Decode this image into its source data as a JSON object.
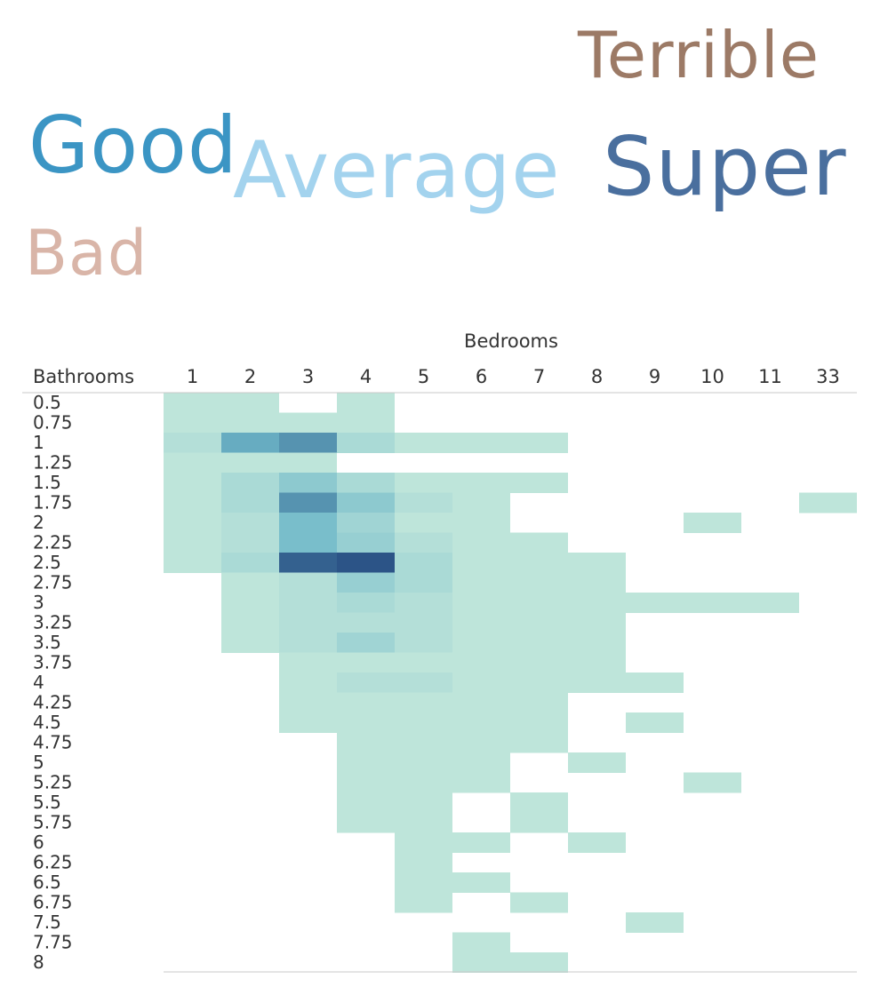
{
  "word_cloud": [
    {
      "text": "Terrible",
      "color": "#9c7a66"
    },
    {
      "text": "Good",
      "color": "#3b95c4"
    },
    {
      "text": "Average",
      "color": "#a3d3ee"
    },
    {
      "text": "Super",
      "color": "#4a6f9e"
    },
    {
      "text": "Bad",
      "color": "#d9b5a8"
    }
  ],
  "chart_data": {
    "type": "heatmap",
    "xlabel": "Bedrooms",
    "ylabel": "Bathrooms",
    "x": [
      "1",
      "2",
      "3",
      "4",
      "5",
      "6",
      "7",
      "8",
      "9",
      "10",
      "11",
      "33"
    ],
    "y": [
      "0.5",
      "0.75",
      "1",
      "1.25",
      "1.5",
      "1.75",
      "2",
      "2.25",
      "2.5",
      "2.75",
      "3",
      "3.25",
      "3.5",
      "3.75",
      "4",
      "4.25",
      "4.5",
      "4.75",
      "5",
      "5.25",
      "5.5",
      "5.75",
      "6",
      "6.25",
      "6.5",
      "6.75",
      "7.5",
      "7.75",
      "8"
    ],
    "grid": false,
    "color_scale": [
      "#bee5da",
      "#6fb8c9",
      "#2c5487"
    ],
    "cells": [
      [
        "0.5",
        "1",
        1
      ],
      [
        "0.5",
        "2",
        1
      ],
      [
        "0.5",
        "4",
        1
      ],
      [
        "0.75",
        "1",
        1
      ],
      [
        "0.75",
        "2",
        1
      ],
      [
        "0.75",
        "3",
        1
      ],
      [
        "0.75",
        "4",
        1
      ],
      [
        "1",
        "1",
        2
      ],
      [
        "1",
        "2",
        10
      ],
      [
        "1",
        "3",
        12
      ],
      [
        "1",
        "4",
        3
      ],
      [
        "1",
        "5",
        1
      ],
      [
        "1",
        "6",
        1
      ],
      [
        "1",
        "7",
        1
      ],
      [
        "1.25",
        "1",
        1
      ],
      [
        "1.25",
        "2",
        1
      ],
      [
        "1.25",
        "3",
        1
      ],
      [
        "1.5",
        "1",
        1
      ],
      [
        "1.5",
        "2",
        3
      ],
      [
        "1.5",
        "3",
        6
      ],
      [
        "1.5",
        "4",
        3
      ],
      [
        "1.5",
        "5",
        1
      ],
      [
        "1.5",
        "6",
        1
      ],
      [
        "1.5",
        "7",
        1
      ],
      [
        "1.75",
        "1",
        1
      ],
      [
        "1.75",
        "2",
        3
      ],
      [
        "1.75",
        "3",
        12
      ],
      [
        "1.75",
        "4",
        6
      ],
      [
        "1.75",
        "5",
        2
      ],
      [
        "1.75",
        "6",
        1
      ],
      [
        "1.75",
        "33",
        1
      ],
      [
        "2",
        "1",
        1
      ],
      [
        "2",
        "2",
        2
      ],
      [
        "2",
        "3",
        8
      ],
      [
        "2",
        "4",
        4
      ],
      [
        "2",
        "5",
        1
      ],
      [
        "2",
        "6",
        1
      ],
      [
        "2",
        "10",
        1
      ],
      [
        "2.25",
        "1",
        1
      ],
      [
        "2.25",
        "2",
        2
      ],
      [
        "2.25",
        "3",
        8
      ],
      [
        "2.25",
        "4",
        5
      ],
      [
        "2.25",
        "5",
        2
      ],
      [
        "2.25",
        "6",
        1
      ],
      [
        "2.25",
        "7",
        1
      ],
      [
        "2.5",
        "1",
        1
      ],
      [
        "2.5",
        "2",
        3
      ],
      [
        "2.5",
        "3",
        16
      ],
      [
        "2.5",
        "4",
        17
      ],
      [
        "2.5",
        "5",
        3
      ],
      [
        "2.5",
        "6",
        1
      ],
      [
        "2.5",
        "7",
        1
      ],
      [
        "2.5",
        "8",
        1
      ],
      [
        "2.75",
        "2",
        1
      ],
      [
        "2.75",
        "3",
        2
      ],
      [
        "2.75",
        "4",
        5
      ],
      [
        "2.75",
        "5",
        3
      ],
      [
        "2.75",
        "6",
        1
      ],
      [
        "2.75",
        "7",
        1
      ],
      [
        "2.75",
        "8",
        1
      ],
      [
        "3",
        "2",
        1
      ],
      [
        "3",
        "3",
        2
      ],
      [
        "3",
        "4",
        3
      ],
      [
        "3",
        "5",
        2
      ],
      [
        "3",
        "6",
        1
      ],
      [
        "3",
        "7",
        1
      ],
      [
        "3",
        "8",
        1
      ],
      [
        "3",
        "9",
        1
      ],
      [
        "3",
        "10",
        1
      ],
      [
        "3",
        "11",
        1
      ],
      [
        "3.25",
        "2",
        1
      ],
      [
        "3.25",
        "3",
        2
      ],
      [
        "3.25",
        "4",
        2
      ],
      [
        "3.25",
        "5",
        2
      ],
      [
        "3.25",
        "6",
        1
      ],
      [
        "3.25",
        "7",
        1
      ],
      [
        "3.25",
        "8",
        1
      ],
      [
        "3.5",
        "2",
        1
      ],
      [
        "3.5",
        "3",
        2
      ],
      [
        "3.5",
        "4",
        4
      ],
      [
        "3.5",
        "5",
        2
      ],
      [
        "3.5",
        "6",
        1
      ],
      [
        "3.5",
        "7",
        1
      ],
      [
        "3.5",
        "8",
        1
      ],
      [
        "3.75",
        "3",
        1
      ],
      [
        "3.75",
        "4",
        1
      ],
      [
        "3.75",
        "5",
        1
      ],
      [
        "3.75",
        "6",
        1
      ],
      [
        "3.75",
        "7",
        1
      ],
      [
        "3.75",
        "8",
        1
      ],
      [
        "4",
        "3",
        1
      ],
      [
        "4",
        "4",
        2
      ],
      [
        "4",
        "5",
        2
      ],
      [
        "4",
        "6",
        1
      ],
      [
        "4",
        "7",
        1
      ],
      [
        "4",
        "8",
        1
      ],
      [
        "4",
        "9",
        1
      ],
      [
        "4.25",
        "3",
        1
      ],
      [
        "4.25",
        "4",
        1
      ],
      [
        "4.25",
        "5",
        1
      ],
      [
        "4.25",
        "6",
        1
      ],
      [
        "4.25",
        "7",
        1
      ],
      [
        "4.5",
        "3",
        1
      ],
      [
        "4.5",
        "4",
        1
      ],
      [
        "4.5",
        "5",
        1
      ],
      [
        "4.5",
        "6",
        1
      ],
      [
        "4.5",
        "7",
        1
      ],
      [
        "4.5",
        "9",
        1
      ],
      [
        "4.75",
        "4",
        1
      ],
      [
        "4.75",
        "5",
        1
      ],
      [
        "4.75",
        "6",
        1
      ],
      [
        "4.75",
        "7",
        1
      ],
      [
        "5",
        "4",
        1
      ],
      [
        "5",
        "5",
        1
      ],
      [
        "5",
        "6",
        1
      ],
      [
        "5",
        "8",
        1
      ],
      [
        "5.25",
        "4",
        1
      ],
      [
        "5.25",
        "5",
        1
      ],
      [
        "5.25",
        "6",
        1
      ],
      [
        "5.25",
        "10",
        1
      ],
      [
        "5.5",
        "4",
        1
      ],
      [
        "5.5",
        "5",
        1
      ],
      [
        "5.5",
        "7",
        1
      ],
      [
        "5.75",
        "4",
        1
      ],
      [
        "5.75",
        "5",
        1
      ],
      [
        "5.75",
        "7",
        1
      ],
      [
        "6",
        "5",
        1
      ],
      [
        "6",
        "6",
        1
      ],
      [
        "6",
        "8",
        1
      ],
      [
        "6.25",
        "5",
        1
      ],
      [
        "6.5",
        "5",
        1
      ],
      [
        "6.5",
        "6",
        1
      ],
      [
        "6.75",
        "5",
        1
      ],
      [
        "6.75",
        "7",
        1
      ],
      [
        "7.5",
        "9",
        1
      ],
      [
        "7.75",
        "6",
        1
      ],
      [
        "8",
        "6",
        1
      ],
      [
        "8",
        "7",
        1
      ]
    ]
  }
}
